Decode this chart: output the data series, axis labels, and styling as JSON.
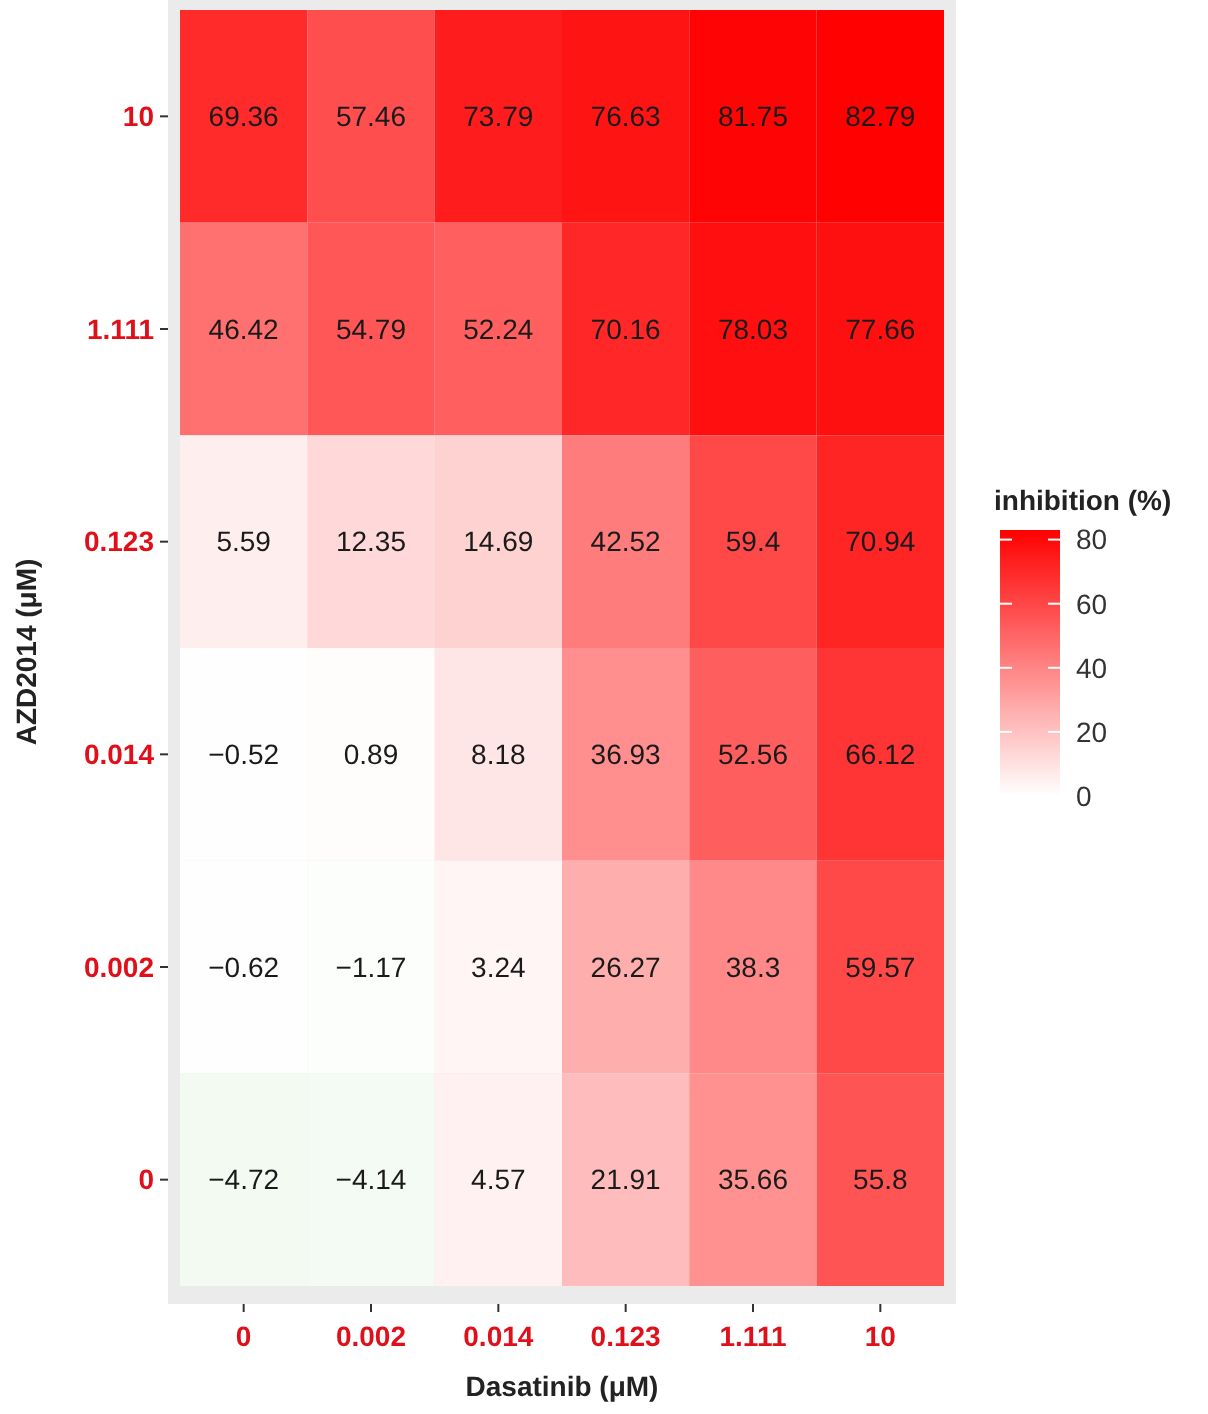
{
  "chart_data": {
    "type": "heatmap",
    "xlabel": "Dasatinib (μM)",
    "ylabel": "AZD2014 (μM)",
    "clabel": "inhibition (%)",
    "categories": [
      "0",
      "0.002",
      "0.014",
      "0.123",
      "1.111",
      "10"
    ],
    "y_categories": [
      "10",
      "1.111",
      "0.123",
      "0.014",
      "0.002",
      "0"
    ],
    "cells": [
      [
        69.36,
        57.46,
        73.79,
        76.63,
        81.75,
        82.79
      ],
      [
        46.42,
        54.79,
        52.24,
        70.16,
        78.03,
        77.66
      ],
      [
        5.59,
        12.35,
        14.69,
        42.52,
        59.4,
        70.94
      ],
      [
        -0.52,
        0.89,
        8.18,
        36.93,
        52.56,
        66.12
      ],
      [
        -0.62,
        -1.17,
        3.24,
        26.27,
        38.3,
        59.57
      ],
      [
        -4.72,
        -4.14,
        4.57,
        21.91,
        35.66,
        55.8
      ]
    ],
    "clim": [
      0,
      83
    ],
    "cticks": [
      0,
      20,
      40,
      60,
      80
    ],
    "colors": [
      "#22aa22",
      "#ffffff",
      "#ff0000"
    ],
    "data_labels": true
  }
}
